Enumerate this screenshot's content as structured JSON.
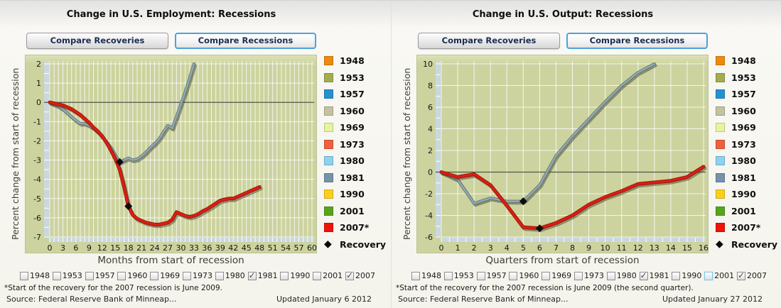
{
  "theme": {
    "plot_bg": "#ccd39e",
    "grid_color": "#ffffff",
    "zero_line_color": "#53534a",
    "axis_strip_color": "#c9d8e0",
    "active_button_border": "#4da3d9",
    "recovery_marker_color": "#0c0c0c"
  },
  "chart_data": [
    {
      "type": "line",
      "title": "Change in U.S. Employment: Recessions",
      "buttons": [
        {
          "label": "Compare Recoveries",
          "active": false
        },
        {
          "label": "Compare Recessions",
          "active": true
        }
      ],
      "xlabel": "Months from start of recession",
      "ylabel": "Percent change from start of recession",
      "xlim": [
        0,
        60
      ],
      "ylim": [
        -7,
        2
      ],
      "x_tick_step": 3,
      "y_tick_step": 1,
      "grid_x_step": 1,
      "grid_y_step": 1,
      "minor_x_step": 1,
      "minor_y_step": 0.5,
      "grid_on": true,
      "legend_position": "right",
      "series": [
        {
          "name": "1981",
          "color": "#8fa9b9",
          "edge": "#60705f",
          "legend_color": "#7593aa",
          "width": 2.6,
          "x_start": 0,
          "x_step": 1,
          "values": [
            0.0,
            -0.1,
            -0.2,
            -0.35,
            -0.55,
            -0.75,
            -0.95,
            -1.1,
            -1.1,
            -1.2,
            -1.35,
            -1.55,
            -1.8,
            -2.05,
            -2.35,
            -2.75,
            -3.1,
            -3.0,
            -2.9,
            -3.0,
            -2.95,
            -2.8,
            -2.6,
            -2.35,
            -2.15,
            -1.9,
            -1.55,
            -1.2,
            -1.35,
            -0.75,
            -0.1,
            0.55,
            1.25,
            2.0
          ]
        },
        {
          "name": "2007*",
          "color": "#dd1d10",
          "edge": "#8e1409",
          "legend_color": "#ee1408",
          "width": 3.4,
          "x_start": 0,
          "x_step": 1,
          "values": [
            0.0,
            -0.05,
            -0.1,
            -0.15,
            -0.25,
            -0.35,
            -0.5,
            -0.65,
            -0.85,
            -1.05,
            -1.3,
            -1.5,
            -1.75,
            -2.1,
            -2.5,
            -2.95,
            -3.5,
            -4.4,
            -5.4,
            -5.85,
            -6.05,
            -6.15,
            -6.25,
            -6.3,
            -6.35,
            -6.35,
            -6.3,
            -6.25,
            -6.1,
            -5.7,
            -5.8,
            -5.9,
            -5.95,
            -5.9,
            -5.8,
            -5.65,
            -5.55,
            -5.4,
            -5.25,
            -5.1,
            -5.05,
            -5.0,
            -5.0,
            -4.9,
            -4.8,
            -4.7,
            -4.6,
            -4.5,
            -4.4
          ]
        }
      ],
      "recovery_markers": [
        {
          "x": 16,
          "y": -3.1
        },
        {
          "x": 18,
          "y": -5.4
        }
      ],
      "legend": [
        {
          "label": "1948",
          "color": "#ef8a0d"
        },
        {
          "label": "1953",
          "color": "#a3ad4e"
        },
        {
          "label": "1957",
          "color": "#2691d0"
        },
        {
          "label": "1960",
          "color": "#c5c2a2"
        },
        {
          "label": "1969",
          "color": "#e6f59d"
        },
        {
          "label": "1973",
          "color": "#f1603c"
        },
        {
          "label": "1980",
          "color": "#8dd2ef"
        },
        {
          "label": "1981",
          "color": "#7593aa"
        },
        {
          "label": "1990",
          "color": "#fdd018"
        },
        {
          "label": "2001",
          "color": "#57a41d"
        },
        {
          "label": "2007*",
          "color": "#ee1408"
        },
        {
          "label": "Recovery",
          "marker": "diamond"
        }
      ],
      "checkboxes": [
        {
          "label": "1948",
          "checked": false
        },
        {
          "label": "1953",
          "checked": false
        },
        {
          "label": "1957",
          "checked": false
        },
        {
          "label": "1960",
          "checked": false
        },
        {
          "label": "1969",
          "checked": false
        },
        {
          "label": "1973",
          "checked": false
        },
        {
          "label": "1980",
          "checked": false
        },
        {
          "label": "1981",
          "checked": true
        },
        {
          "label": "1990",
          "checked": false
        },
        {
          "label": "2001",
          "checked": false
        },
        {
          "label": "2007",
          "checked": true
        }
      ],
      "footnote": "*Start of the recovery for the 2007 recession is June 2009.",
      "source": "Source: Federal Reserve Bank of Minneap...",
      "updated": "Updated January 6 2012"
    },
    {
      "type": "line",
      "title": "Change in U.S. Output: Recessions",
      "buttons": [
        {
          "label": "Compare Recoveries",
          "active": false
        },
        {
          "label": "Compare Recessions",
          "active": true
        }
      ],
      "xlabel": "Quarters from start of recession",
      "ylabel": "Percent change from start of recession",
      "xlim": [
        0,
        16
      ],
      "ylim": [
        -6,
        10
      ],
      "x_tick_step": 1,
      "y_tick_step": 2,
      "grid_x_step": 1,
      "grid_y_step": 2,
      "minor_x_step": 0.5,
      "minor_y_step": 1,
      "grid_on": true,
      "legend_position": "right",
      "series": [
        {
          "name": "1981",
          "color": "#8fa9b9",
          "edge": "#60705f",
          "legend_color": "#7593aa",
          "width": 2.6,
          "x_start": 0,
          "x_step": 1,
          "values": [
            0.0,
            -0.7,
            -2.9,
            -2.4,
            -2.7,
            -2.7,
            -1.2,
            1.5,
            3.3,
            4.9,
            6.5,
            8.0,
            9.2,
            10.0
          ]
        },
        {
          "name": "2007*",
          "color": "#dd1d10",
          "edge": "#8e1409",
          "legend_color": "#ee1408",
          "width": 3.4,
          "x_start": 0,
          "x_step": 1,
          "values": [
            0.0,
            -0.45,
            -0.2,
            -1.2,
            -3.1,
            -5.1,
            -5.2,
            -4.7,
            -4.0,
            -3.0,
            -2.3,
            -1.75,
            -1.1,
            -0.95,
            -0.8,
            -0.45,
            0.5
          ]
        }
      ],
      "recovery_markers": [
        {
          "x": 5,
          "y": -2.7
        },
        {
          "x": 6,
          "y": -5.2
        }
      ],
      "legend": [
        {
          "label": "1948",
          "color": "#ef8a0d"
        },
        {
          "label": "1953",
          "color": "#a3ad4e"
        },
        {
          "label": "1957",
          "color": "#2691d0"
        },
        {
          "label": "1960",
          "color": "#c5c2a2"
        },
        {
          "label": "1969",
          "color": "#e6f59d"
        },
        {
          "label": "1973",
          "color": "#f1603c"
        },
        {
          "label": "1980",
          "color": "#8dd2ef"
        },
        {
          "label": "1981",
          "color": "#7593aa"
        },
        {
          "label": "1990",
          "color": "#fdd018"
        },
        {
          "label": "2001",
          "color": "#57a41d"
        },
        {
          "label": "2007*",
          "color": "#ee1408"
        },
        {
          "label": "Recovery",
          "marker": "diamond"
        }
      ],
      "checkboxes": [
        {
          "label": "1948",
          "checked": false
        },
        {
          "label": "1953",
          "checked": false
        },
        {
          "label": "1957",
          "checked": false
        },
        {
          "label": "1960",
          "checked": false
        },
        {
          "label": "1969",
          "checked": false
        },
        {
          "label": "1973",
          "checked": false
        },
        {
          "label": "1980",
          "checked": false
        },
        {
          "label": "1981",
          "checked": true
        },
        {
          "label": "1990",
          "checked": false
        },
        {
          "label": "2001",
          "checked": false,
          "highlighted": true
        },
        {
          "label": "2007",
          "checked": true
        }
      ],
      "footnote": "*Start of the recovery for the 2007 recession is June 2009 (the second quarter).",
      "source": "Source: Federal Reserve Bank of Minneap...",
      "updated": "Updated January 27 2012"
    }
  ]
}
